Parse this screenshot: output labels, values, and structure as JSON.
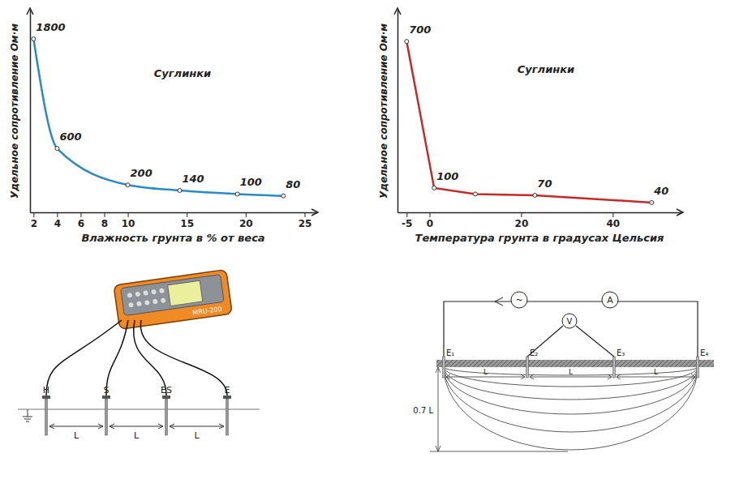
{
  "chart_data": [
    {
      "type": "line",
      "title": "Суглинки",
      "x_label": "Влажность грунта в % от веса",
      "y_label": "Удельное сопротивление Ом·м",
      "x": [
        2,
        4,
        10,
        14.4,
        19.3,
        23.2
      ],
      "values": [
        1800,
        600,
        200,
        140,
        100,
        80
      ],
      "color": "#2a8ac4",
      "xlim": [
        1.7,
        26
      ],
      "ylim": [
        -100,
        2120
      ],
      "xticks": [
        2,
        4,
        6,
        8,
        10,
        15,
        20,
        25
      ],
      "tick_labels": "x",
      "data_labels": true,
      "marker": "circle",
      "line_style": "smooth",
      "grid": false
    },
    {
      "type": "line",
      "title": "Суглинки",
      "x_label": "Температура грунта в градусах Цельсия",
      "y_label": "Удельное сопротивление Ом·м",
      "x": [
        -5,
        1,
        10,
        23,
        48.5
      ],
      "values": [
        700,
        100,
        75,
        70,
        40
      ],
      "value_labels": [
        "700",
        "100",
        null,
        "70",
        "40"
      ],
      "color": "#c42a2a",
      "xlim": [
        -7,
        55
      ],
      "ylim": [
        0,
        830
      ],
      "xticks": [
        -5,
        0,
        20,
        40
      ],
      "tick_labels": "x",
      "data_labels": true,
      "marker": "circle",
      "line_style": "solid",
      "grid": false
    }
  ],
  "diagrams": {
    "wiring": {
      "device_label": "MRU-200",
      "electrodes": [
        "H",
        "S",
        "ES",
        "E"
      ],
      "spacings": [
        "L",
        "L",
        "L"
      ]
    },
    "profile": {
      "electrodes": [
        "E₁",
        "E₂",
        "E₃",
        "E₄"
      ],
      "spacings": [
        "L",
        "L",
        "L"
      ],
      "depth_label": "0.7 L",
      "source": "~",
      "ammeter": "A",
      "voltmeter": "V"
    }
  }
}
